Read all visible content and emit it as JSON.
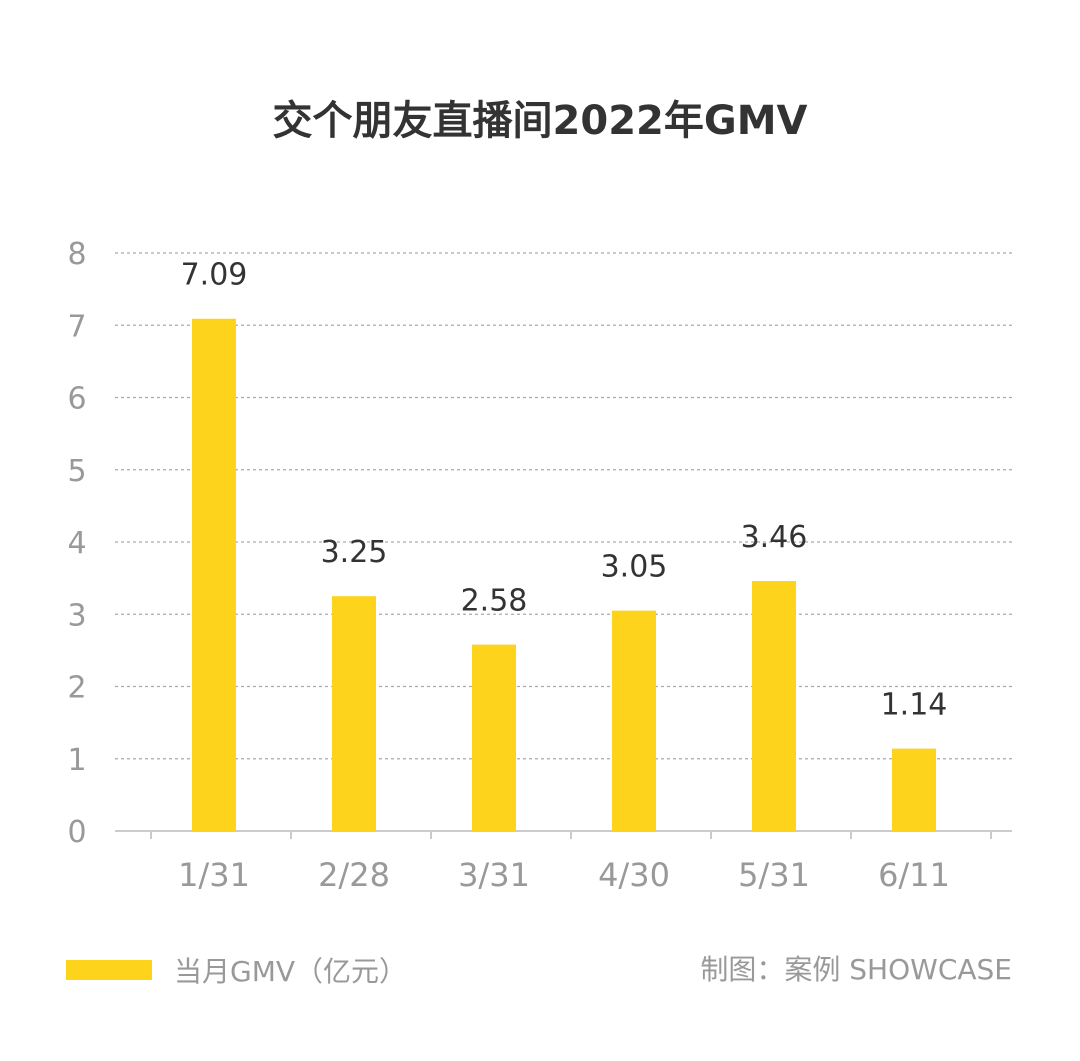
{
  "colors": {
    "bar": "#FDD31C",
    "grid": "#AAAAAA",
    "axis": "#CCCCCC",
    "tick_text": "#999999",
    "value_text": "#333333",
    "title_text": "#333333"
  },
  "chart_data": {
    "type": "bar",
    "title": "交个朋友直播间2022年GMV",
    "categories": [
      "1/31",
      "2/28",
      "3/31",
      "4/30",
      "5/31",
      "6/11"
    ],
    "series": [
      {
        "name": "当月GMV（亿元）",
        "values": [
          7.09,
          3.25,
          2.58,
          3.05,
          3.46,
          1.14
        ]
      }
    ],
    "ylim": [
      0,
      8
    ],
    "yticks": [
      0,
      1,
      2,
      3,
      4,
      5,
      6,
      7,
      8
    ],
    "grid": true,
    "legend_position": "bottom-left",
    "data_labels": true
  },
  "legend": {
    "label": "当月GMV（亿元）"
  },
  "credit": "制图：案例 SHOWCASE"
}
